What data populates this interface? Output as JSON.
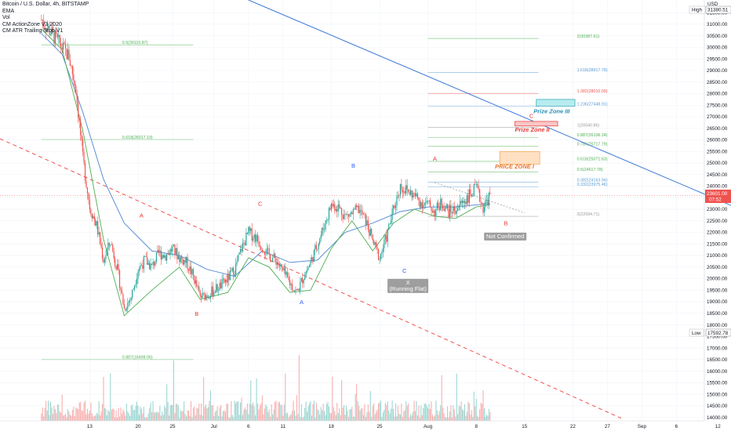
{
  "legend": {
    "title": "Bitcoin / U.S. Dollar, 4h, BITSTAMP",
    "lines": [
      "EMA",
      "Vol",
      "CM ActionZone V3 2020",
      "CM ATR Trailing Stop V1"
    ]
  },
  "axis": {
    "currency": "USD",
    "high_tag": "High",
    "high_value": "31380.51",
    "low_tag": "Low",
    "low_value": "17592.78",
    "last_price": "23601.00",
    "countdown": "07:52"
  },
  "colors": {
    "up": "#26a69a",
    "down": "#ef5350",
    "ema": "#5b8fd6",
    "trail": "#4caf50",
    "trend": "#3c78d8",
    "dashed": "#ef5350",
    "fib_blue": "#5b9bd5",
    "fib_green": "#4caf50",
    "fib_red": "#ef5350",
    "fib_grey": "#999999"
  },
  "chart_data": {
    "type": "candlestick",
    "title": "Bitcoin / U.S. Dollar, 4h, BITSTAMP",
    "ylim": [
      13850,
      32050
    ],
    "yticks": [
      14000,
      14500,
      15000,
      15500,
      16000,
      16500,
      17000,
      17500,
      18000,
      18500,
      19000,
      19500,
      20000,
      20500,
      21000,
      21500,
      22000,
      22500,
      23000,
      23500,
      24000,
      24500,
      25000,
      25500,
      26000,
      26500,
      27000,
      27500,
      28000,
      28500,
      29000,
      29500,
      30000,
      30500,
      31000,
      31500
    ],
    "xticks": [
      {
        "label": "13",
        "day": 13
      },
      {
        "label": "20",
        "day": 20
      },
      {
        "label": "25",
        "day": 25
      },
      {
        "label": "Jul",
        "day": 31
      },
      {
        "label": "6",
        "day": 36
      },
      {
        "label": "11",
        "day": 41
      },
      {
        "label": "18",
        "day": 48
      },
      {
        "label": "25",
        "day": 55
      },
      {
        "label": "Aug",
        "day": 62
      },
      {
        "label": "8",
        "day": 69
      },
      {
        "label": "15",
        "day": 76
      },
      {
        "label": "22",
        "day": 83
      },
      {
        "label": "27",
        "day": 88
      },
      {
        "label": "Sep",
        "day": 93
      },
      {
        "label": "6",
        "day": 98
      },
      {
        "label": "12",
        "day": 104
      }
    ],
    "price_path": [
      [
        6,
        31200
      ],
      [
        8,
        30400
      ],
      [
        10,
        29600
      ],
      [
        11,
        28200
      ],
      [
        12,
        25200
      ],
      [
        13,
        23100
      ],
      [
        14,
        22300
      ],
      [
        15,
        20800
      ],
      [
        16,
        21600
      ],
      [
        17,
        20400
      ],
      [
        18,
        18700
      ],
      [
        19,
        19200
      ],
      [
        20,
        20400
      ],
      [
        21,
        20800
      ],
      [
        22,
        20500
      ],
      [
        23,
        21100
      ],
      [
        24,
        21000
      ],
      [
        25,
        21300
      ],
      [
        26,
        20900
      ],
      [
        27,
        20700
      ],
      [
        28,
        20100
      ],
      [
        29,
        19200
      ],
      [
        30,
        19300
      ],
      [
        31,
        19500
      ],
      [
        32,
        19700
      ],
      [
        33,
        20000
      ],
      [
        34,
        20400
      ],
      [
        35,
        21300
      ],
      [
        36,
        22000
      ],
      [
        37,
        21800
      ],
      [
        38,
        21400
      ],
      [
        39,
        21000
      ],
      [
        40,
        20800
      ],
      [
        41,
        20300
      ],
      [
        42,
        19800
      ],
      [
        43,
        19400
      ],
      [
        44,
        20100
      ],
      [
        45,
        20700
      ],
      [
        46,
        21500
      ],
      [
        47,
        22300
      ],
      [
        48,
        23200
      ],
      [
        49,
        23100
      ],
      [
        50,
        22700
      ],
      [
        51,
        22800
      ],
      [
        52,
        23000
      ],
      [
        53,
        22500
      ],
      [
        54,
        21600
      ],
      [
        55,
        20900
      ],
      [
        56,
        21800
      ],
      [
        57,
        23000
      ],
      [
        58,
        24000
      ],
      [
        59,
        23800
      ],
      [
        60,
        23600
      ],
      [
        61,
        23300
      ],
      [
        62,
        23200
      ],
      [
        63,
        22900
      ],
      [
        64,
        23300
      ],
      [
        65,
        22900
      ],
      [
        66,
        23000
      ],
      [
        67,
        23300
      ],
      [
        68,
        23600
      ],
      [
        69,
        23900
      ],
      [
        70,
        23100
      ],
      [
        71,
        23601
      ]
    ],
    "ema_path": [
      [
        6,
        30600
      ],
      [
        9,
        29700
      ],
      [
        12,
        27200
      ],
      [
        15,
        24300
      ],
      [
        18,
        22400
      ],
      [
        22,
        21200
      ],
      [
        26,
        21000
      ],
      [
        30,
        20400
      ],
      [
        34,
        20100
      ],
      [
        38,
        21200
      ],
      [
        42,
        20700
      ],
      [
        46,
        20800
      ],
      [
        50,
        22000
      ],
      [
        54,
        22400
      ],
      [
        58,
        22900
      ],
      [
        62,
        23100
      ],
      [
        66,
        23100
      ],
      [
        71,
        23250
      ]
    ],
    "trail_path": [
      [
        6,
        30800
      ],
      [
        9,
        29900
      ],
      [
        12,
        26400
      ],
      [
        15,
        21700
      ],
      [
        18,
        18400
      ],
      [
        22,
        19500
      ],
      [
        26,
        20500
      ],
      [
        29,
        19100
      ],
      [
        33,
        19400
      ],
      [
        36,
        20900
      ],
      [
        39,
        20500
      ],
      [
        42,
        19400
      ],
      [
        45,
        19500
      ],
      [
        48,
        21300
      ],
      [
        51,
        22500
      ],
      [
        54,
        21200
      ],
      [
        57,
        22400
      ],
      [
        60,
        23000
      ],
      [
        63,
        22700
      ],
      [
        66,
        22600
      ],
      [
        69,
        23100
      ],
      [
        71,
        23200
      ]
    ],
    "trendline_blue": {
      "from": {
        "day": 36,
        "price": 32050
      },
      "to": {
        "day": 108,
        "price": 22900
      }
    },
    "trendline_red_dashed": {
      "from": {
        "day": 0,
        "price": 26050
      },
      "to": {
        "day": 90,
        "price": 13960
      }
    },
    "trendline_grey_dotted": {
      "from": {
        "day": 63,
        "price": 24150
      },
      "to": {
        "day": 76,
        "price": 22850
      }
    },
    "fib_left": {
      "x_from": 6,
      "x_to": 28,
      "levels": [
        {
          "label": "0.5(30110.87)",
          "price": 30110.87,
          "color": "green"
        },
        {
          "label": "0.618(26017.19)",
          "price": 26017.19,
          "color": "green"
        },
        {
          "label": "0.887(16498.06)",
          "price": 16498.06,
          "color": "green"
        }
      ]
    },
    "fib_right": {
      "x_from": 62,
      "x_to": 78,
      "levels": [
        {
          "label": "2(30387.61)",
          "price": 30387.61,
          "color": "green"
        },
        {
          "label": "1.618(28917.78)",
          "price": 28917.78,
          "color": "blue"
        },
        {
          "label": "1.382(28010.09)",
          "price": 28010.09,
          "color": "red"
        },
        {
          "label": "1.236(27448.91)",
          "price": 27448.91,
          "color": "blue"
        },
        {
          "label": "1(26540.86)",
          "price": 26540.86,
          "color": "grey"
        },
        {
          "label": "0.887(26106.24)",
          "price": 26106.24,
          "color": "green"
        },
        {
          "label": "0.786(25717.79)",
          "price": 25717.79,
          "color": "green"
        },
        {
          "label": "0.618(25071.63)",
          "price": 25071.63,
          "color": "green"
        },
        {
          "label": "0.5(24617.78)",
          "price": 24617.78,
          "color": "green"
        },
        {
          "label": "0.382(24163.94)",
          "price": 24163.94,
          "color": "blue"
        },
        {
          "label": "0.332(23975.46)",
          "price": 23975.46,
          "color": "blue"
        },
        {
          "label": "0(22694.71)",
          "price": 22694.71,
          "color": "grey"
        }
      ]
    },
    "zones": [
      {
        "label": "PRICE ZONE I",
        "day_from": 72.4,
        "day_to": 78.2,
        "price_top": 25500,
        "price_bottom": 24950,
        "fill": "#ffe0c2",
        "stroke": "#f5a04a",
        "text_color": "#e8742e",
        "text_day": 71.7,
        "text_price": 24760
      },
      {
        "label": "Prize Zone II",
        "day_from": 74.6,
        "day_to": 80.8,
        "price_top": 26800,
        "price_bottom": 26600,
        "fill": "#f8c7c7",
        "stroke": "#e53935",
        "text_color": "#e53935",
        "text_day": 74.6,
        "text_price": 26350
      },
      {
        "label": "Prize Zone III",
        "day_from": 77.7,
        "day_to": 83.3,
        "price_top": 27750,
        "price_bottom": 27460,
        "fill": "#b7ebef",
        "stroke": "#26a6b0",
        "text_color": "#2a8fb8",
        "text_day": 77.3,
        "text_price": 27150
      }
    ],
    "wave_labels": [
      {
        "text": "A",
        "day": 20.5,
        "price": 22650,
        "color": "red"
      },
      {
        "text": "B",
        "day": 28.5,
        "price": 18400,
        "color": "red"
      },
      {
        "text": "C",
        "day": 37.7,
        "price": 23150,
        "color": "red"
      },
      {
        "text": "A",
        "day": 43.7,
        "price": 18900,
        "color": "blue"
      },
      {
        "text": "B",
        "day": 51.2,
        "price": 24800,
        "color": "blue"
      },
      {
        "text": "C",
        "day": 58.6,
        "price": 20250,
        "color": "blue"
      },
      {
        "text": "A",
        "day": 63,
        "price": 25100,
        "color": "red"
      },
      {
        "text": "C",
        "day": 77,
        "price": 26950,
        "color": "red"
      },
      {
        "text": "B",
        "day": 73.3,
        "price": 22300,
        "color": "red"
      }
    ],
    "tags": [
      {
        "lines": [
          "X",
          "(Running Flat)"
        ],
        "day": 59.1,
        "price": 19750
      },
      {
        "lines": [
          "Not Confirmed"
        ],
        "day": 73.2,
        "price": 21750
      }
    ]
  }
}
